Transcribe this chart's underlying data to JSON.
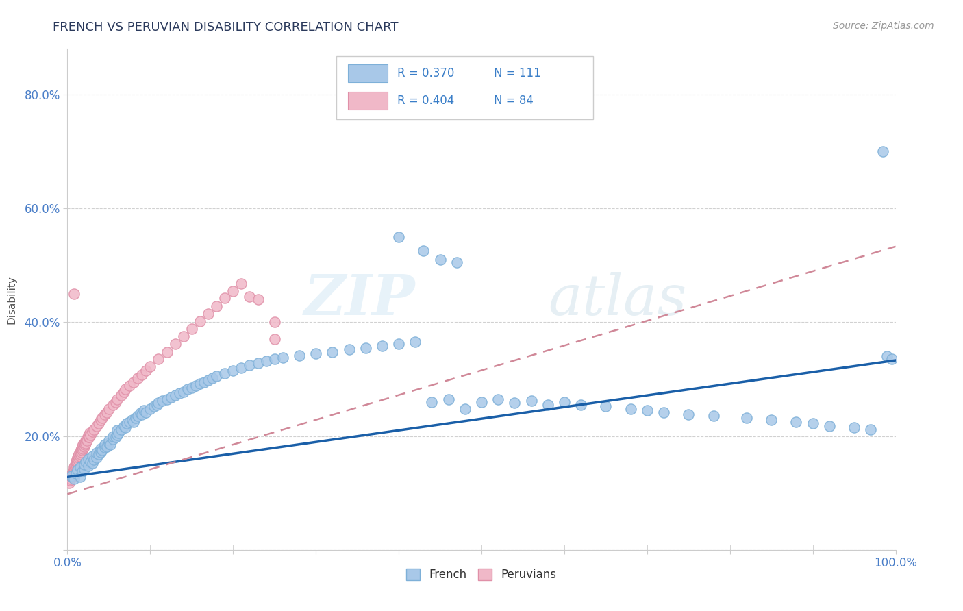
{
  "title": "FRENCH VS PERUVIAN DISABILITY CORRELATION CHART",
  "source": "Source: ZipAtlas.com",
  "ylabel": "Disability",
  "xlim": [
    0.0,
    1.0
  ],
  "ylim": [
    0.0,
    0.88
  ],
  "x_ticks": [
    0.0,
    0.1,
    0.2,
    0.3,
    0.4,
    0.5,
    0.6,
    0.7,
    0.8,
    0.9,
    1.0
  ],
  "x_tick_labels": [
    "0.0%",
    "",
    "",
    "",
    "",
    "",
    "",
    "",
    "",
    "",
    "100.0%"
  ],
  "y_ticks": [
    0.0,
    0.2,
    0.4,
    0.6,
    0.8
  ],
  "y_tick_labels": [
    "",
    "20.0%",
    "40.0%",
    "60.0%",
    "80.0%"
  ],
  "french_color": "#A8C8E8",
  "french_edge_color": "#7EB0D8",
  "peruvian_color": "#F0B8C8",
  "peruvian_edge_color": "#E090A8",
  "french_line_color": "#1A5FA8",
  "peruvian_line_color": "#D08898",
  "legend_r_french": "R = 0.370",
  "legend_n_french": "N = 111",
  "legend_r_peruvian": "R = 0.404",
  "legend_n_peruvian": "N = 84",
  "french_legend_label": "French",
  "peruvian_legend_label": "Peruvians",
  "watermark_zip": "ZIP",
  "watermark_atlas": "atlas",
  "background_color": "#FFFFFF",
  "grid_color": "#CCCCCC",
  "french_intercept": 0.128,
  "french_slope": 0.205,
  "peruvian_intercept": 0.098,
  "peruvian_slope": 0.435,
  "french_scatter_x": [
    0.005,
    0.008,
    0.01,
    0.012,
    0.015,
    0.015,
    0.018,
    0.02,
    0.02,
    0.022,
    0.025,
    0.025,
    0.028,
    0.03,
    0.03,
    0.032,
    0.035,
    0.035,
    0.038,
    0.04,
    0.04,
    0.042,
    0.045,
    0.045,
    0.048,
    0.05,
    0.05,
    0.052,
    0.055,
    0.055,
    0.058,
    0.06,
    0.06,
    0.062,
    0.065,
    0.068,
    0.07,
    0.072,
    0.075,
    0.078,
    0.08,
    0.082,
    0.085,
    0.088,
    0.09,
    0.092,
    0.095,
    0.1,
    0.105,
    0.108,
    0.11,
    0.115,
    0.12,
    0.125,
    0.13,
    0.135,
    0.14,
    0.145,
    0.15,
    0.155,
    0.16,
    0.165,
    0.17,
    0.175,
    0.18,
    0.19,
    0.2,
    0.21,
    0.22,
    0.23,
    0.24,
    0.25,
    0.26,
    0.28,
    0.3,
    0.32,
    0.34,
    0.36,
    0.38,
    0.4,
    0.42,
    0.44,
    0.46,
    0.48,
    0.5,
    0.52,
    0.54,
    0.56,
    0.58,
    0.6,
    0.62,
    0.65,
    0.68,
    0.7,
    0.72,
    0.75,
    0.78,
    0.82,
    0.85,
    0.88,
    0.9,
    0.92,
    0.95,
    0.97,
    0.985,
    0.99,
    0.995,
    0.4,
    0.43,
    0.45,
    0.47
  ],
  "french_scatter_y": [
    0.13,
    0.125,
    0.135,
    0.14,
    0.145,
    0.128,
    0.138,
    0.142,
    0.15,
    0.155,
    0.148,
    0.16,
    0.155,
    0.152,
    0.165,
    0.158,
    0.162,
    0.17,
    0.168,
    0.172,
    0.178,
    0.175,
    0.18,
    0.185,
    0.182,
    0.188,
    0.192,
    0.185,
    0.195,
    0.2,
    0.198,
    0.202,
    0.21,
    0.205,
    0.212,
    0.218,
    0.215,
    0.222,
    0.225,
    0.228,
    0.225,
    0.232,
    0.235,
    0.24,
    0.238,
    0.245,
    0.242,
    0.248,
    0.252,
    0.255,
    0.258,
    0.262,
    0.265,
    0.268,
    0.272,
    0.275,
    0.278,
    0.282,
    0.285,
    0.288,
    0.292,
    0.295,
    0.298,
    0.302,
    0.305,
    0.31,
    0.315,
    0.32,
    0.325,
    0.328,
    0.332,
    0.335,
    0.338,
    0.342,
    0.345,
    0.348,
    0.352,
    0.355,
    0.358,
    0.362,
    0.365,
    0.26,
    0.265,
    0.248,
    0.26,
    0.265,
    0.258,
    0.262,
    0.255,
    0.26,
    0.255,
    0.252,
    0.248,
    0.245,
    0.242,
    0.238,
    0.235,
    0.232,
    0.228,
    0.225,
    0.222,
    0.218,
    0.215,
    0.212,
    0.7,
    0.34,
    0.335,
    0.55,
    0.525,
    0.51,
    0.505
  ],
  "peruvian_scatter_x": [
    0.002,
    0.003,
    0.004,
    0.005,
    0.005,
    0.006,
    0.006,
    0.007,
    0.007,
    0.008,
    0.008,
    0.008,
    0.009,
    0.009,
    0.01,
    0.01,
    0.01,
    0.011,
    0.011,
    0.012,
    0.012,
    0.013,
    0.013,
    0.014,
    0.014,
    0.015,
    0.015,
    0.016,
    0.016,
    0.017,
    0.017,
    0.018,
    0.018,
    0.019,
    0.019,
    0.02,
    0.02,
    0.021,
    0.022,
    0.022,
    0.023,
    0.024,
    0.025,
    0.025,
    0.026,
    0.027,
    0.028,
    0.03,
    0.032,
    0.035,
    0.038,
    0.04,
    0.042,
    0.045,
    0.048,
    0.05,
    0.055,
    0.058,
    0.06,
    0.065,
    0.068,
    0.07,
    0.075,
    0.08,
    0.085,
    0.09,
    0.095,
    0.1,
    0.11,
    0.12,
    0.13,
    0.14,
    0.15,
    0.16,
    0.17,
    0.18,
    0.19,
    0.2,
    0.21,
    0.22,
    0.23,
    0.25,
    0.008,
    0.25
  ],
  "peruvian_scatter_y": [
    0.118,
    0.122,
    0.125,
    0.128,
    0.132,
    0.128,
    0.135,
    0.13,
    0.138,
    0.132,
    0.14,
    0.145,
    0.142,
    0.148,
    0.145,
    0.15,
    0.155,
    0.152,
    0.158,
    0.155,
    0.162,
    0.158,
    0.165,
    0.162,
    0.168,
    0.165,
    0.17,
    0.168,
    0.175,
    0.172,
    0.178,
    0.175,
    0.182,
    0.178,
    0.185,
    0.182,
    0.188,
    0.185,
    0.192,
    0.188,
    0.195,
    0.192,
    0.198,
    0.202,
    0.198,
    0.205,
    0.202,
    0.208,
    0.212,
    0.218,
    0.222,
    0.228,
    0.232,
    0.238,
    0.242,
    0.248,
    0.255,
    0.26,
    0.265,
    0.272,
    0.278,
    0.282,
    0.288,
    0.295,
    0.302,
    0.308,
    0.315,
    0.322,
    0.335,
    0.348,
    0.362,
    0.375,
    0.388,
    0.402,
    0.415,
    0.428,
    0.442,
    0.455,
    0.468,
    0.445,
    0.44,
    0.4,
    0.45,
    0.37
  ]
}
